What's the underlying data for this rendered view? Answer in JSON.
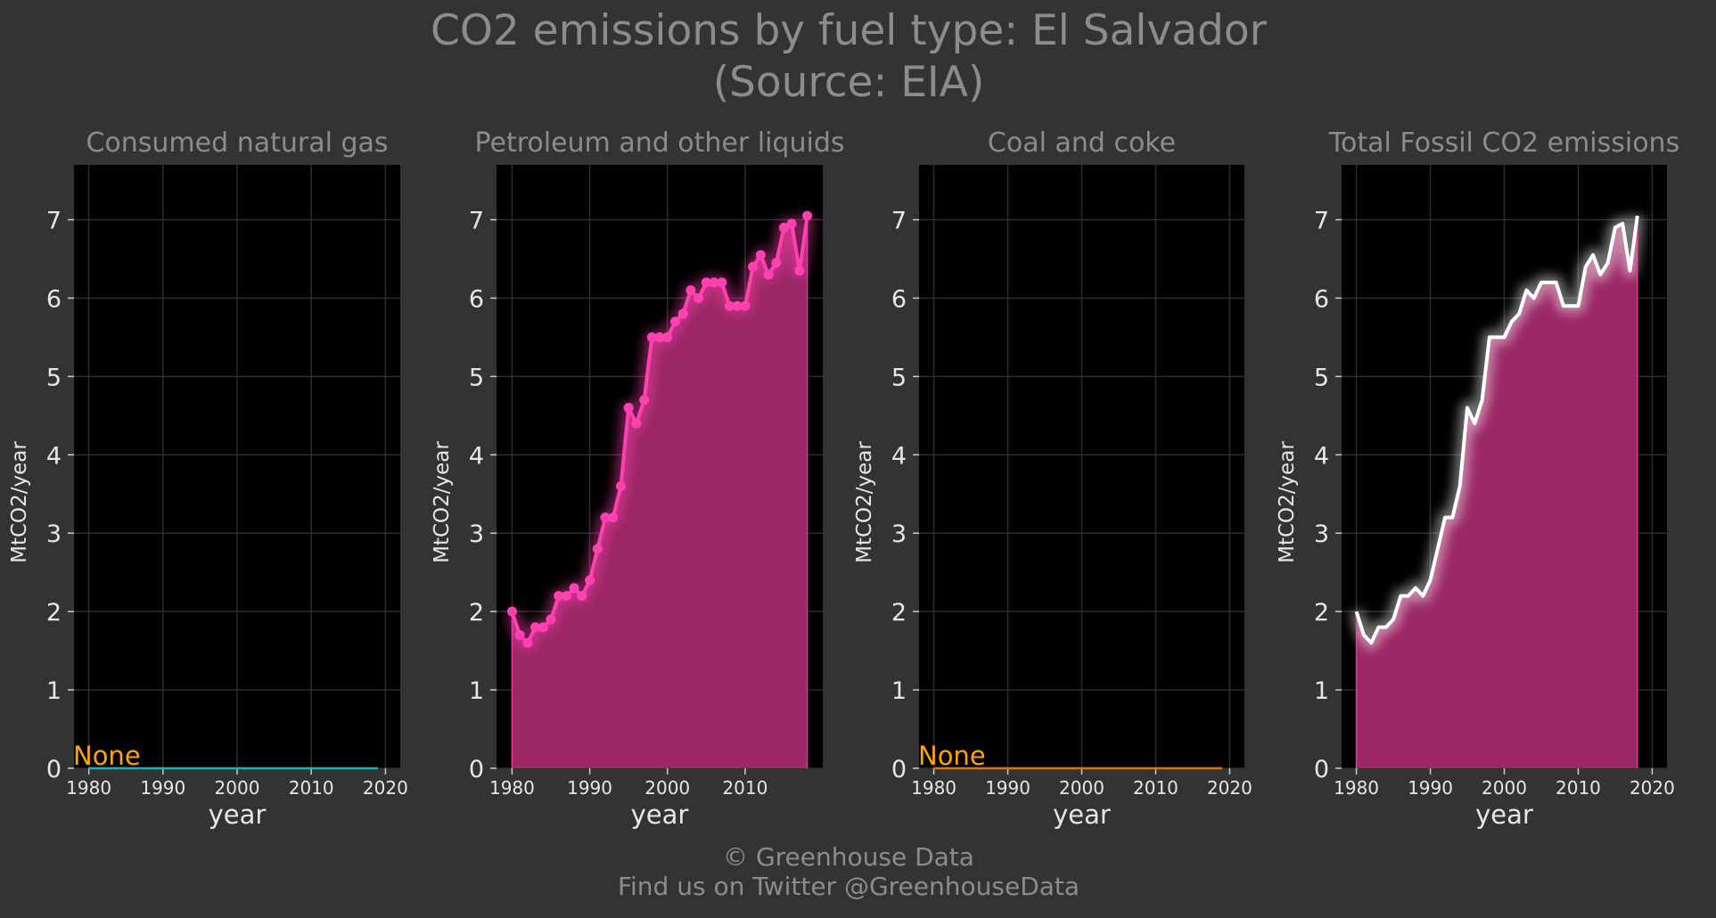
{
  "title_line1": "CO2 emissions by fuel type: El Salvador",
  "title_line2": "(Source: EIA)",
  "footer_line1": "© Greenhouse Data",
  "footer_line2": "Find us on Twitter @GreenhouseData",
  "colors": {
    "background": "#333333",
    "panel": "#000000",
    "grid": "#2c2c2c",
    "title_text": "#8c8c8c",
    "tick_text": "#e6e6e6",
    "none_label": "#ffa500",
    "gas_line": "#1ab2b2",
    "petroleum_line": "#ff40b0",
    "petroleum_fill": "#a3296c",
    "coal_line": "#d9720f",
    "total_line": "#ffffff"
  },
  "chart_data": [
    {
      "type": "line",
      "title": "Consumed natural gas",
      "xlabel": "year",
      "ylabel": "MtCO2/year",
      "xlim": [
        1978,
        2022
      ],
      "ylim": [
        0,
        7.7
      ],
      "xticks": [
        "1980",
        "1990",
        "2000",
        "2010",
        "2020"
      ],
      "yticks": [
        "0",
        "1",
        "2",
        "3",
        "4",
        "5",
        "6",
        "7"
      ],
      "annotation": "None",
      "series": [
        {
          "x": [
            1980,
            2019
          ],
          "values": [
            0,
            0
          ]
        }
      ],
      "grid": true
    },
    {
      "type": "area",
      "title": "Petroleum and other liquids",
      "xlabel": "year",
      "ylabel": "MtCO2/year",
      "xlim": [
        1978,
        2020
      ],
      "ylim": [
        0,
        7.7
      ],
      "xticks": [
        "1980",
        "1990",
        "2000",
        "2010"
      ],
      "yticks": [
        "0",
        "1",
        "2",
        "3",
        "4",
        "5",
        "6",
        "7"
      ],
      "series": [
        {
          "x": [
            1980,
            1981,
            1982,
            1983,
            1984,
            1985,
            1986,
            1987,
            1988,
            1989,
            1990,
            1991,
            1992,
            1993,
            1994,
            1995,
            1996,
            1997,
            1998,
            1999,
            2000,
            2001,
            2002,
            2003,
            2004,
            2005,
            2006,
            2007,
            2008,
            2009,
            2010,
            2011,
            2012,
            2013,
            2014,
            2015,
            2016,
            2017,
            2018
          ],
          "values": [
            2.0,
            1.7,
            1.6,
            1.8,
            1.8,
            1.9,
            2.2,
            2.2,
            2.3,
            2.2,
            2.4,
            2.8,
            3.2,
            3.2,
            3.6,
            4.6,
            4.4,
            4.7,
            5.5,
            5.5,
            5.5,
            5.7,
            5.8,
            6.1,
            6.0,
            6.2,
            6.2,
            6.2,
            5.9,
            5.9,
            5.9,
            6.4,
            6.55,
            6.3,
            6.45,
            6.9,
            6.95,
            6.35,
            7.05
          ]
        }
      ],
      "markers": true,
      "grid": true
    },
    {
      "type": "line",
      "title": "Coal and coke",
      "xlabel": "year",
      "ylabel": "MtCO2/year",
      "xlim": [
        1978,
        2022
      ],
      "ylim": [
        0,
        7.7
      ],
      "xticks": [
        "1980",
        "1990",
        "2000",
        "2010",
        "2020"
      ],
      "yticks": [
        "0",
        "1",
        "2",
        "3",
        "4",
        "5",
        "6",
        "7"
      ],
      "annotation": "None",
      "series": [
        {
          "x": [
            1980,
            2019
          ],
          "values": [
            0,
            0
          ]
        }
      ],
      "grid": true
    },
    {
      "type": "area",
      "title": "Total Fossil CO2 emissions",
      "xlabel": "year",
      "ylabel": "MtCO2/year",
      "xlim": [
        1978,
        2022
      ],
      "ylim": [
        0,
        7.7
      ],
      "xticks": [
        "1980",
        "1990",
        "2000",
        "2010",
        "2020"
      ],
      "yticks": [
        "0",
        "1",
        "2",
        "3",
        "4",
        "5",
        "6",
        "7"
      ],
      "series": [
        {
          "x": [
            1980,
            1981,
            1982,
            1983,
            1984,
            1985,
            1986,
            1987,
            1988,
            1989,
            1990,
            1991,
            1992,
            1993,
            1994,
            1995,
            1996,
            1997,
            1998,
            1999,
            2000,
            2001,
            2002,
            2003,
            2004,
            2005,
            2006,
            2007,
            2008,
            2009,
            2010,
            2011,
            2012,
            2013,
            2014,
            2015,
            2016,
            2017,
            2018
          ],
          "values": [
            2.0,
            1.7,
            1.6,
            1.8,
            1.8,
            1.9,
            2.2,
            2.2,
            2.3,
            2.2,
            2.4,
            2.8,
            3.2,
            3.2,
            3.6,
            4.6,
            4.4,
            4.7,
            5.5,
            5.5,
            5.5,
            5.7,
            5.8,
            6.1,
            6.0,
            6.2,
            6.2,
            6.2,
            5.9,
            5.9,
            5.9,
            6.4,
            6.55,
            6.3,
            6.45,
            6.9,
            6.95,
            6.35,
            7.05
          ]
        }
      ],
      "markers": false,
      "grid": true
    }
  ]
}
